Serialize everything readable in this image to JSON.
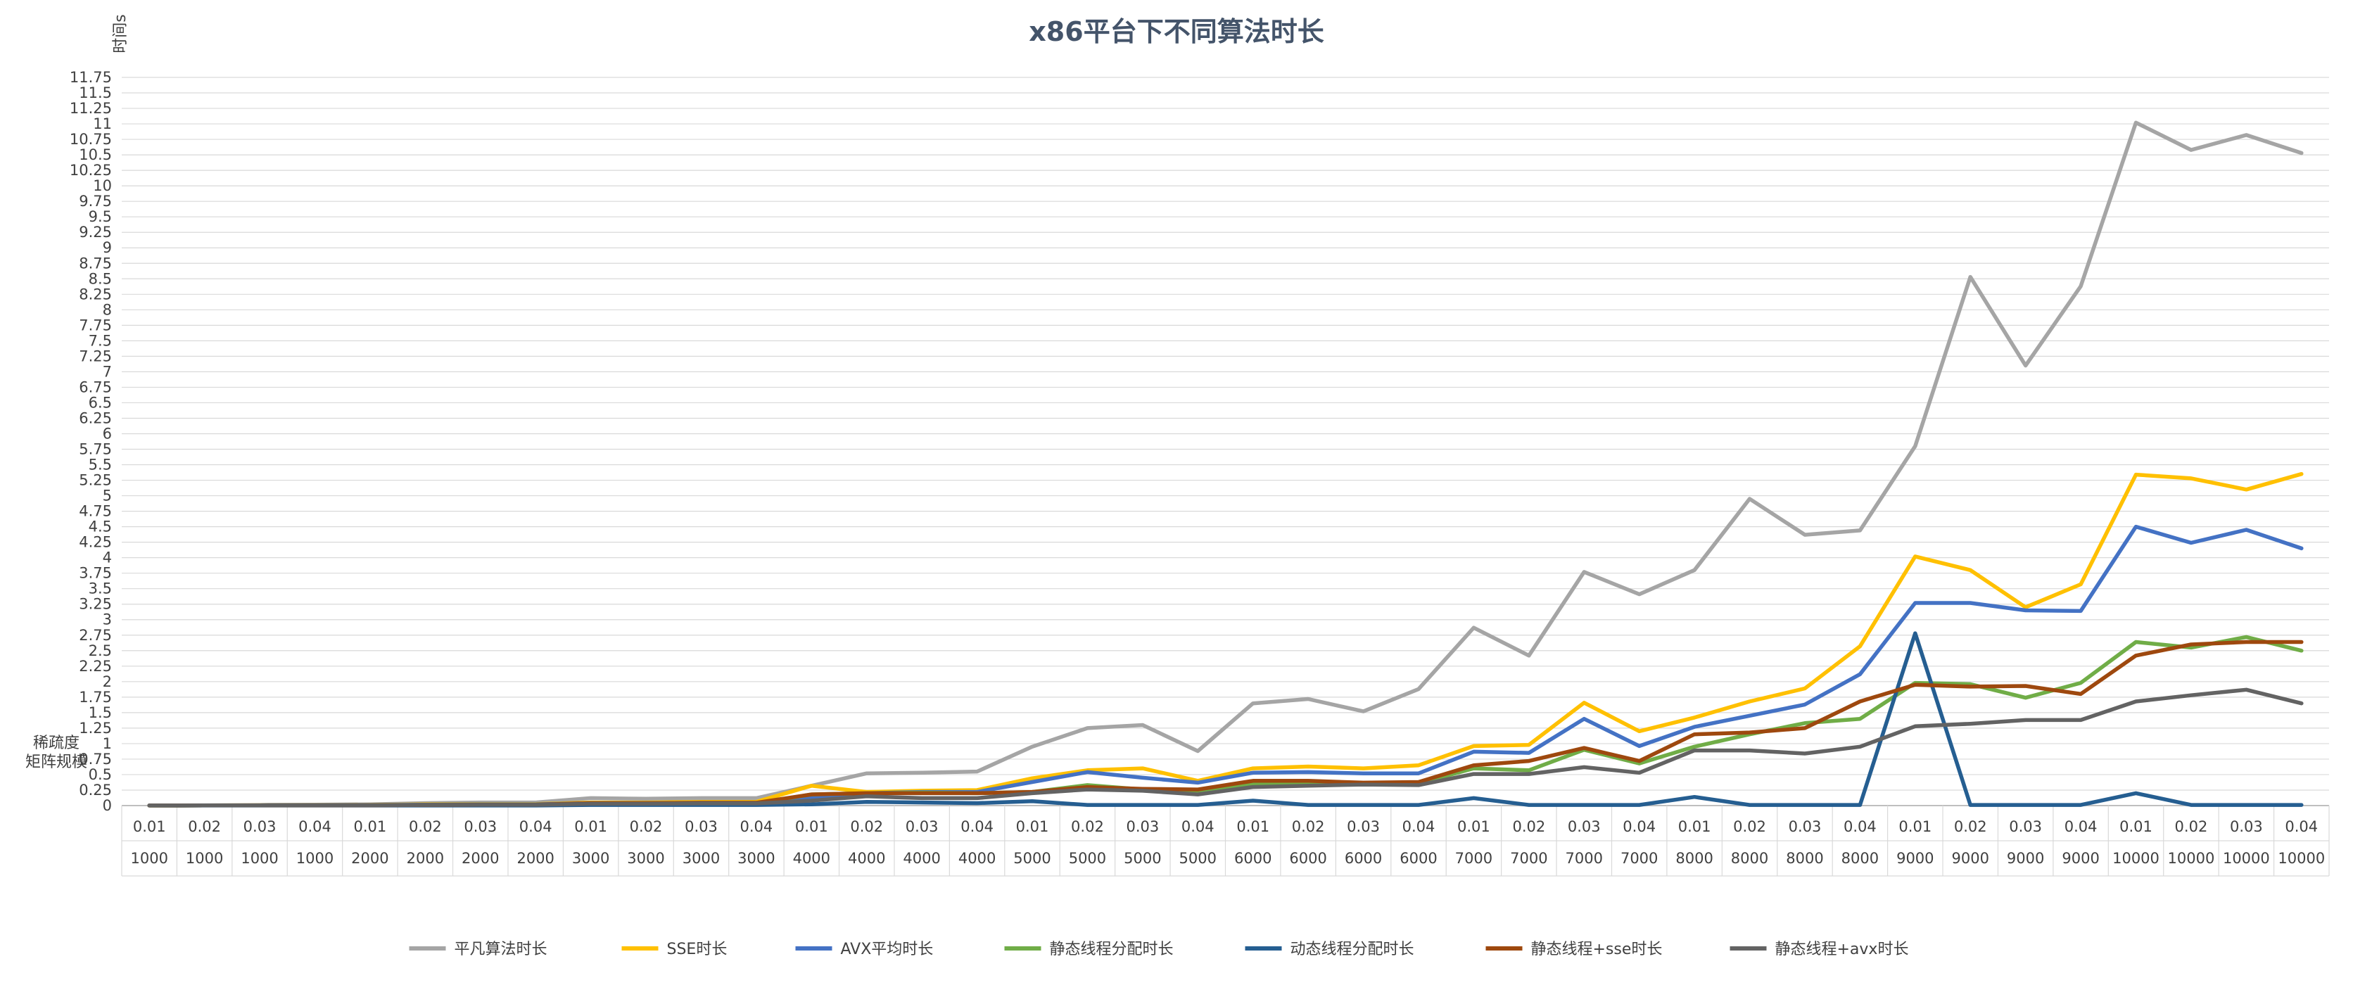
{
  "chart_data": {
    "type": "line",
    "title": "x86平台下不同算法时长",
    "ylabel": "时间s",
    "xlabel_row1": "稀疏度",
    "xlabel_row2": "矩阵规模",
    "ylim": [
      0,
      11.75
    ],
    "ytick_step": 0.25,
    "grid": true,
    "legend_position": "bottom",
    "categories_row1": [
      "0.01",
      "0.02",
      "0.03",
      "0.04",
      "0.01",
      "0.02",
      "0.03",
      "0.04",
      "0.01",
      "0.02",
      "0.03",
      "0.04",
      "0.01",
      "0.02",
      "0.03",
      "0.04",
      "0.01",
      "0.02",
      "0.03",
      "0.04",
      "0.01",
      "0.02",
      "0.03",
      "0.04",
      "0.01",
      "0.02",
      "0.03",
      "0.04",
      "0.01",
      "0.02",
      "0.03",
      "0.04",
      "0.01",
      "0.02",
      "0.03",
      "0.04",
      "0.01",
      "0.02",
      "0.03",
      "0.04"
    ],
    "categories_row2": [
      "1000",
      "1000",
      "1000",
      "1000",
      "2000",
      "2000",
      "2000",
      "2000",
      "3000",
      "3000",
      "3000",
      "3000",
      "4000",
      "4000",
      "4000",
      "4000",
      "5000",
      "5000",
      "5000",
      "5000",
      "6000",
      "6000",
      "6000",
      "6000",
      "7000",
      "7000",
      "7000",
      "7000",
      "8000",
      "8000",
      "8000",
      "8000",
      "9000",
      "9000",
      "9000",
      "9000",
      "10000",
      "10000",
      "10000",
      "10000"
    ],
    "series": [
      {
        "name": "平凡算法时长",
        "color": "#a5a5a5",
        "values": [
          0.002,
          0.005,
          0.01,
          0.015,
          0.02,
          0.04,
          0.05,
          0.05,
          0.12,
          0.11,
          0.12,
          0.12,
          0.32,
          0.52,
          0.53,
          0.55,
          0.95,
          1.25,
          1.3,
          0.88,
          1.65,
          1.72,
          1.52,
          1.88,
          2.87,
          2.42,
          3.77,
          3.41,
          3.8,
          4.95,
          4.37,
          4.44,
          5.8,
          8.53,
          7.1,
          8.38,
          11.02,
          10.58,
          10.82,
          10.53
        ]
      },
      {
        "name": "SSE时长",
        "color": "#ffc000",
        "values": [
          0.001,
          0.002,
          0.004,
          0.006,
          0.01,
          0.02,
          0.025,
          0.025,
          0.05,
          0.05,
          0.06,
          0.06,
          0.32,
          0.22,
          0.24,
          0.25,
          0.44,
          0.57,
          0.6,
          0.4,
          0.6,
          0.63,
          0.6,
          0.65,
          0.96,
          0.98,
          1.66,
          1.2,
          1.42,
          1.68,
          1.89,
          2.57,
          4.02,
          3.8,
          3.2,
          3.57,
          5.34,
          5.28,
          5.1,
          5.35
        ]
      },
      {
        "name": "AVX平均时长",
        "color": "#4472c4",
        "values": [
          0.001,
          0.002,
          0.003,
          0.005,
          0.008,
          0.015,
          0.02,
          0.02,
          0.04,
          0.04,
          0.045,
          0.045,
          0.13,
          0.2,
          0.22,
          0.22,
          0.38,
          0.54,
          0.45,
          0.37,
          0.53,
          0.54,
          0.52,
          0.52,
          0.87,
          0.85,
          1.4,
          0.96,
          1.27,
          1.45,
          1.63,
          2.12,
          3.27,
          3.27,
          3.15,
          3.14,
          4.5,
          4.24,
          4.45,
          4.15
        ]
      },
      {
        "name": "静态线程分配时长",
        "color": "#70ad47",
        "values": [
          0.001,
          0.002,
          0.003,
          0.004,
          0.006,
          0.01,
          0.015,
          0.015,
          0.03,
          0.03,
          0.035,
          0.035,
          0.18,
          0.2,
          0.21,
          0.2,
          0.22,
          0.33,
          0.26,
          0.22,
          0.35,
          0.37,
          0.36,
          0.36,
          0.6,
          0.57,
          0.9,
          0.68,
          0.95,
          1.15,
          1.33,
          1.4,
          1.98,
          1.96,
          1.74,
          1.98,
          2.64,
          2.55,
          2.72,
          2.5
        ]
      },
      {
        "name": "动态线程分配时长",
        "color": "#255e91",
        "values": [
          0.002,
          0.001,
          0.001,
          0.001,
          0.001,
          0.001,
          0.001,
          0.001,
          0.01,
          0.01,
          0.01,
          0.01,
          0.02,
          0.06,
          0.05,
          0.04,
          0.07,
          0.01,
          0.01,
          0.01,
          0.08,
          0.01,
          0.01,
          0.01,
          0.12,
          0.01,
          0.01,
          0.01,
          0.14,
          0.01,
          0.01,
          0.01,
          2.78,
          0.01,
          0.01,
          0.01,
          0.2,
          0.01,
          0.01,
          0.01
        ]
      },
      {
        "name": "静态线程+sse时长",
        "color": "#9e480e",
        "values": [
          0.001,
          0.002,
          0.003,
          0.004,
          0.006,
          0.01,
          0.015,
          0.015,
          0.04,
          0.04,
          0.045,
          0.045,
          0.18,
          0.2,
          0.2,
          0.2,
          0.22,
          0.3,
          0.27,
          0.26,
          0.4,
          0.4,
          0.37,
          0.38,
          0.65,
          0.72,
          0.93,
          0.72,
          1.15,
          1.18,
          1.25,
          1.68,
          1.95,
          1.92,
          1.93,
          1.8,
          2.42,
          2.6,
          2.64,
          2.64
        ]
      },
      {
        "name": "静态线程+avx时长",
        "color": "#636363",
        "values": [
          0.001,
          0.002,
          0.003,
          0.004,
          0.006,
          0.01,
          0.012,
          0.012,
          0.03,
          0.03,
          0.035,
          0.035,
          0.08,
          0.15,
          0.12,
          0.12,
          0.2,
          0.26,
          0.24,
          0.18,
          0.3,
          0.32,
          0.34,
          0.33,
          0.51,
          0.51,
          0.62,
          0.53,
          0.89,
          0.89,
          0.84,
          0.95,
          1.28,
          1.32,
          1.38,
          1.38,
          1.68,
          1.78,
          1.87,
          1.65
        ]
      }
    ]
  }
}
